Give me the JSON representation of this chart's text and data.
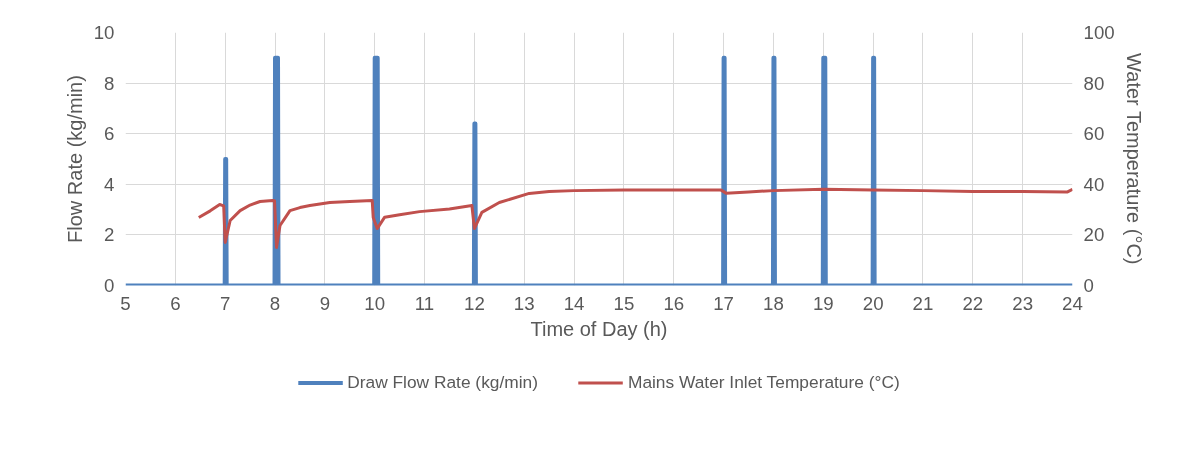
{
  "chart_data": {
    "type": "line",
    "xlabel": "Time of Day (h)",
    "ylabel": "Flow Rate (kg/min)",
    "y2label": "Water Temperature (°C)",
    "xlim": [
      5,
      24
    ],
    "xticks": [
      5,
      6,
      7,
      8,
      9,
      10,
      11,
      12,
      13,
      14,
      15,
      16,
      17,
      18,
      19,
      20,
      21,
      22,
      23,
      24
    ],
    "ylim": [
      0,
      10
    ],
    "yticks": [
      0,
      2,
      4,
      6,
      8,
      10
    ],
    "y2lim": [
      0,
      100
    ],
    "y2ticks": [
      0,
      20,
      40,
      60,
      80,
      100
    ],
    "grid": true,
    "legend": "bottom",
    "line_style": "solid",
    "marker": "none",
    "series": [
      {
        "name": "Draw Flow Rate (kg/min)",
        "color": "#4f81bd",
        "x": [
          5,
          6.99,
          7,
          7.02,
          7.03,
          7.99,
          8,
          8.06,
          8.07,
          9.99,
          10,
          10.06,
          10.07,
          11.99,
          12,
          12.02,
          12.03,
          16.99,
          17,
          17.02,
          17.03,
          17.99,
          18,
          18.02,
          18.03,
          18.99,
          19,
          19.04,
          19.05,
          19.99,
          20,
          20.02,
          20.03,
          24
        ],
        "values": [
          0,
          0,
          5,
          5,
          0,
          0,
          9,
          9,
          0,
          0,
          9,
          9,
          0,
          0,
          6.4,
          6.4,
          0,
          0,
          9,
          9,
          0,
          0,
          9,
          9,
          0,
          0,
          9,
          9,
          0,
          0,
          9,
          9,
          0,
          0
        ]
      },
      {
        "name": "Mains Water Inlet Temperature (°C)",
        "color": "#c0504d",
        "axis": "y2",
        "x": [
          6.47,
          6.7,
          6.89,
          6.97,
          7.0,
          7.1,
          7.3,
          7.5,
          7.7,
          7.95,
          7.99,
          8.03,
          8.1,
          8.3,
          8.5,
          8.7,
          9.1,
          9.5,
          9.95,
          9.97,
          10.05,
          10.2,
          10.5,
          10.9,
          11.5,
          11.95,
          12.0,
          12.15,
          12.5,
          13.1,
          13.5,
          14,
          15,
          16,
          16.95,
          17.05,
          17.5,
          18,
          19,
          20,
          21,
          22,
          23,
          23.9,
          24
        ],
        "values": [
          26.9,
          29.5,
          32,
          31.5,
          17,
          25.7,
          29.6,
          31.8,
          33.2,
          33.6,
          33.5,
          15,
          23.7,
          29.6,
          30.8,
          31.6,
          32.8,
          33.2,
          33.6,
          26.9,
          22.5,
          27,
          28,
          29.2,
          30.2,
          31.6,
          22.5,
          28.9,
          32.8,
          36.4,
          37.2,
          37.5,
          37.7,
          37.7,
          37.7,
          36.5,
          37,
          37.5,
          38,
          37.7,
          37.5,
          37.2,
          37.2,
          37,
          38
        ]
      }
    ]
  }
}
